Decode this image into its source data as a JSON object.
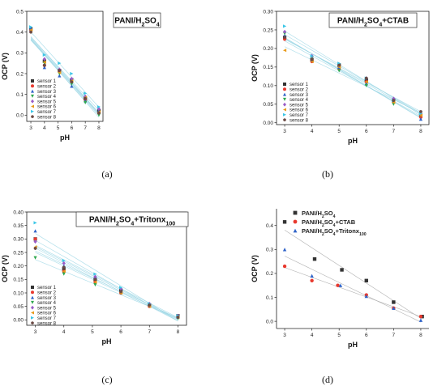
{
  "colors": {
    "s1": "#333333",
    "s2": "#e8392e",
    "s3": "#2f63c9",
    "s4": "#2ea84e",
    "s5": "#9a5cc6",
    "s6": "#e89a1a",
    "s7": "#3cc6e6",
    "s8": "#6b4a44",
    "fit": "#9fd8e6",
    "fitd": "#aaaaaa"
  },
  "chart_data": [
    {
      "panel": "(a)",
      "type": "scatter",
      "title": "PANI/H2SO4",
      "xlabel": "pH",
      "ylabel": "OCP (V)",
      "xlim": [
        2.7,
        8.3
      ],
      "ylim": [
        -0.03,
        0.5
      ],
      "xticks": [
        3,
        4,
        5,
        6,
        7,
        8
      ],
      "yticks": [
        0.0,
        0.1,
        0.2,
        0.3,
        0.4,
        0.5
      ],
      "x": [
        3,
        4,
        5.1,
        6,
        7,
        8
      ],
      "legend_position": "lower-left",
      "series": [
        {
          "name": "sensor 1",
          "values": [
            0.415,
            0.26,
            0.215,
            0.17,
            0.08,
            0.02
          ]
        },
        {
          "name": "sensor 2",
          "values": [
            0.41,
            0.24,
            0.21,
            0.16,
            0.075,
            0.01
          ]
        },
        {
          "name": "sensor 3",
          "values": [
            0.42,
            0.23,
            0.19,
            0.14,
            0.07,
            0.02
          ]
        },
        {
          "name": "sensor 4",
          "values": [
            0.4,
            0.25,
            0.2,
            0.15,
            0.06,
            0.0
          ]
        },
        {
          "name": "sensor 5",
          "values": [
            0.405,
            0.27,
            0.22,
            0.175,
            0.09,
            0.03
          ]
        },
        {
          "name": "sensor 6",
          "values": [
            0.41,
            0.255,
            0.205,
            0.165,
            0.085,
            0.015
          ]
        },
        {
          "name": "sensor 7",
          "values": [
            0.425,
            0.29,
            0.25,
            0.2,
            0.105,
            0.04
          ]
        },
        {
          "name": "sensor 8",
          "values": [
            0.4,
            0.24,
            0.215,
            0.16,
            0.08,
            0.01
          ]
        }
      ]
    },
    {
      "panel": "(b)",
      "type": "scatter",
      "title": "PANI/H2SO4+CTAB",
      "xlabel": "pH",
      "ylabel": "OCP (V)",
      "xlim": [
        2.7,
        8.3
      ],
      "ylim": [
        -0.005,
        0.3
      ],
      "xticks": [
        3,
        4,
        5,
        6,
        7,
        8
      ],
      "yticks": [
        0.0,
        0.05,
        0.1,
        0.15,
        0.2,
        0.25,
        0.3
      ],
      "x": [
        3,
        4,
        5,
        6,
        7,
        8
      ],
      "legend_position": "lower-right",
      "series": [
        {
          "name": "sensor 1",
          "values": [
            0.23,
            0.17,
            0.155,
            0.115,
            0.06,
            0.02
          ]
        },
        {
          "name": "sensor 2",
          "values": [
            0.225,
            0.165,
            0.145,
            0.11,
            0.055,
            0.015
          ]
        },
        {
          "name": "sensor 3",
          "values": [
            0.235,
            0.17,
            0.15,
            0.105,
            0.06,
            0.01
          ]
        },
        {
          "name": "sensor 4",
          "values": [
            0.24,
            0.175,
            0.14,
            0.1,
            0.05,
            0.02
          ]
        },
        {
          "name": "sensor 5",
          "values": [
            0.245,
            0.18,
            0.155,
            0.12,
            0.065,
            0.025
          ]
        },
        {
          "name": "sensor 6",
          "values": [
            0.195,
            0.165,
            0.15,
            0.11,
            0.055,
            0.02
          ]
        },
        {
          "name": "sensor 7",
          "values": [
            0.26,
            0.18,
            0.16,
            0.12,
            0.06,
            0.025
          ]
        },
        {
          "name": "sensor 8",
          "values": [
            0.23,
            0.17,
            0.155,
            0.12,
            0.06,
            0.03
          ]
        }
      ]
    },
    {
      "panel": "(c)",
      "type": "scatter",
      "title": "PANI/H2SO4+Tritonx100",
      "xlabel": "pH",
      "ylabel": "OCP (V)",
      "xlim": [
        2.7,
        8.3
      ],
      "ylim": [
        -0.02,
        0.4
      ],
      "xticks": [
        3,
        4,
        5,
        6,
        7,
        8
      ],
      "yticks": [
        0.0,
        0.05,
        0.1,
        0.15,
        0.2,
        0.25,
        0.3,
        0.35,
        0.4
      ],
      "x": [
        3,
        4,
        5.1,
        6,
        7,
        8
      ],
      "legend_position": "lower-left",
      "series": [
        {
          "name": "sensor 1",
          "values": [
            0.3,
            0.19,
            0.15,
            0.11,
            0.055,
            0.015
          ]
        },
        {
          "name": "sensor 2",
          "values": [
            0.3,
            0.18,
            0.14,
            0.1,
            0.05,
            0.01
          ]
        },
        {
          "name": "sensor 3",
          "values": [
            0.33,
            0.2,
            0.16,
            0.11,
            0.055,
            0.01
          ]
        },
        {
          "name": "sensor 4",
          "values": [
            0.23,
            0.17,
            0.13,
            0.1,
            0.05,
            0.005
          ]
        },
        {
          "name": "sensor 5",
          "values": [
            0.29,
            0.21,
            0.16,
            0.115,
            0.06,
            0.015
          ]
        },
        {
          "name": "sensor 6",
          "values": [
            0.27,
            0.18,
            0.14,
            0.1,
            0.05,
            0.01
          ]
        },
        {
          "name": "sensor 7",
          "values": [
            0.36,
            0.22,
            0.17,
            0.12,
            0.06,
            0.015
          ]
        },
        {
          "name": "sensor 8",
          "values": [
            0.265,
            0.195,
            0.15,
            0.105,
            0.055,
            0.01
          ]
        }
      ]
    },
    {
      "panel": "(d)",
      "type": "scatter",
      "title": "",
      "xlabel": "pH",
      "ylabel": "OCP (V)",
      "xlim": [
        2.7,
        8.3
      ],
      "ylim": [
        -0.03,
        0.47
      ],
      "xticks": [
        3,
        4,
        5,
        6,
        7,
        8
      ],
      "yticks": [
        0.0,
        0.1,
        0.2,
        0.3,
        0.4
      ],
      "legend_position": "top-right",
      "series": [
        {
          "name": "PANI/H2SO4",
          "x": [
            3,
            4.1,
            5.1,
            6,
            7,
            8.05
          ],
          "values": [
            0.415,
            0.26,
            0.215,
            0.17,
            0.08,
            0.02
          ]
        },
        {
          "name": "PANI/H2SO4+CTAB",
          "x": [
            3,
            4,
            4.95,
            6,
            7,
            8
          ],
          "values": [
            0.23,
            0.17,
            0.15,
            0.11,
            0.055,
            0.02
          ]
        },
        {
          "name": "PANI/H2SO4+Tritonx100",
          "x": [
            3,
            4,
            5.05,
            6,
            7,
            8
          ],
          "values": [
            0.3,
            0.19,
            0.15,
            0.105,
            0.055,
            0.005
          ]
        }
      ]
    }
  ]
}
